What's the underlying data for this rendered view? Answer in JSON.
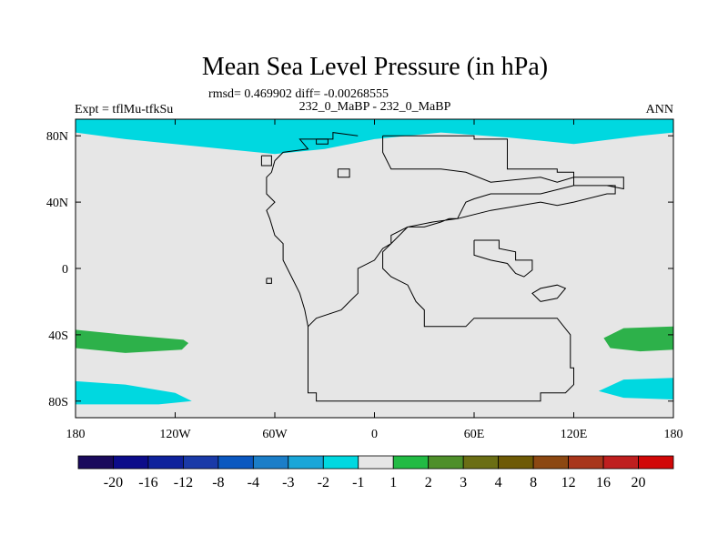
{
  "title": "Mean Sea Level Pressure (in hPa)",
  "stats": "rmsd= 0.469902 diff= -0.00268555",
  "left_label": "Expt = tflMu-tfkSu",
  "center_label": "232_0_MaBP - 232_0_MaBP",
  "right_label": "ANN",
  "colors": {
    "background": "#e6e6e6",
    "coast": "#000000",
    "neg1": "#00d8e0",
    "pos1": "#2db14a"
  },
  "chart_data": {
    "type": "map",
    "projection": "cylindrical-equidistant",
    "lon_range": [
      -180,
      180
    ],
    "lat_range": [
      -90,
      90
    ],
    "x_ticks": [
      {
        "lon": -180,
        "label": "180"
      },
      {
        "lon": -120,
        "label": "120W"
      },
      {
        "lon": -60,
        "label": "60W"
      },
      {
        "lon": 0,
        "label": "0"
      },
      {
        "lon": 60,
        "label": "60E"
      },
      {
        "lon": 120,
        "label": "120E"
      },
      {
        "lon": 180,
        "label": "180"
      }
    ],
    "y_ticks": [
      {
        "lat": 80,
        "label": "80N"
      },
      {
        "lat": 40,
        "label": "40N"
      },
      {
        "lat": 0,
        "label": "0"
      },
      {
        "lat": -40,
        "label": "40S"
      },
      {
        "lat": -80,
        "label": "80S"
      }
    ],
    "regions": [
      {
        "name": "arctic-band",
        "value_class": "-2 to -1",
        "color": "#00d8e0",
        "lonlat": [
          [
            -180,
            82
          ],
          [
            -150,
            78
          ],
          [
            -100,
            73
          ],
          [
            -60,
            69
          ],
          [
            -30,
            72
          ],
          [
            0,
            78
          ],
          [
            40,
            82
          ],
          [
            80,
            79
          ],
          [
            120,
            75
          ],
          [
            160,
            80
          ],
          [
            180,
            82
          ],
          [
            180,
            90
          ],
          [
            -180,
            90
          ]
        ]
      },
      {
        "name": "sw-pacific-high",
        "value_class": "1 to 2",
        "color": "#2db14a",
        "lonlat": [
          [
            -180,
            -37
          ],
          [
            -150,
            -40
          ],
          [
            -115,
            -43
          ],
          [
            -112,
            -45
          ],
          [
            -116,
            -49
          ],
          [
            -150,
            -51
          ],
          [
            -180,
            -48
          ]
        ]
      },
      {
        "name": "se-pacific-high",
        "value_class": "1 to 2",
        "color": "#2db14a",
        "lonlat": [
          [
            180,
            -35
          ],
          [
            150,
            -36
          ],
          [
            138,
            -42
          ],
          [
            142,
            -48
          ],
          [
            160,
            -50
          ],
          [
            180,
            -49
          ]
        ]
      },
      {
        "name": "sw-southern-low",
        "value_class": "-2 to -1",
        "color": "#00d8e0",
        "lonlat": [
          [
            -180,
            -68
          ],
          [
            -150,
            -70
          ],
          [
            -120,
            -75
          ],
          [
            -110,
            -80
          ],
          [
            -130,
            -82
          ],
          [
            -180,
            -82
          ]
        ]
      },
      {
        "name": "se-southern-low",
        "value_class": "-2 to -1",
        "color": "#00d8e0",
        "lonlat": [
          [
            180,
            -66
          ],
          [
            150,
            -67
          ],
          [
            135,
            -74
          ],
          [
            150,
            -78
          ],
          [
            180,
            -79
          ]
        ]
      }
    ],
    "coastlines": [
      {
        "name": "pangaea-outline",
        "lonlat": [
          [
            5,
            80
          ],
          [
            60,
            80
          ],
          [
            60,
            78
          ],
          [
            80,
            78
          ],
          [
            80,
            60
          ],
          [
            110,
            60
          ],
          [
            110,
            58
          ],
          [
            120,
            58
          ],
          [
            120,
            50
          ],
          [
            145,
            50
          ],
          [
            145,
            45
          ],
          [
            140,
            45
          ],
          [
            120,
            40
          ],
          [
            110,
            38
          ],
          [
            100,
            40
          ],
          [
            70,
            35
          ],
          [
            50,
            30
          ],
          [
            35,
            28
          ],
          [
            20,
            25
          ],
          [
            10,
            15
          ],
          [
            5,
            12
          ],
          [
            0,
            5
          ],
          [
            -10,
            0
          ],
          [
            -10,
            -15
          ],
          [
            -15,
            -20
          ],
          [
            -20,
            -25
          ],
          [
            -35,
            -30
          ],
          [
            -40,
            -35
          ],
          [
            -40,
            -60
          ],
          [
            -40,
            -75
          ],
          [
            -35,
            -75
          ],
          [
            -35,
            -80
          ],
          [
            100,
            -80
          ],
          [
            100,
            -75
          ],
          [
            115,
            -75
          ],
          [
            120,
            -70
          ],
          [
            120,
            -60
          ],
          [
            118,
            -60
          ],
          [
            118,
            -40
          ],
          [
            110,
            -30
          ],
          [
            60,
            -30
          ],
          [
            55,
            -35
          ],
          [
            30,
            -35
          ],
          [
            30,
            -25
          ],
          [
            25,
            -20
          ],
          [
            20,
            -10
          ],
          [
            10,
            -5
          ],
          [
            5,
            0
          ],
          [
            5,
            10
          ],
          [
            10,
            15
          ],
          [
            10,
            20
          ],
          [
            20,
            25
          ],
          [
            30,
            25
          ],
          [
            40,
            28
          ],
          [
            45,
            30
          ],
          [
            50,
            30
          ],
          [
            55,
            40
          ],
          [
            60,
            42
          ],
          [
            70,
            45
          ],
          [
            80,
            45
          ],
          [
            100,
            45
          ],
          [
            120,
            50
          ],
          [
            140,
            50
          ],
          [
            150,
            48
          ],
          [
            150,
            55
          ],
          [
            120,
            55
          ],
          [
            110,
            52
          ],
          [
            100,
            55
          ],
          [
            70,
            52
          ],
          [
            55,
            58
          ],
          [
            40,
            60
          ],
          [
            20,
            60
          ],
          [
            10,
            60
          ],
          [
            5,
            70
          ],
          [
            5,
            80
          ]
        ]
      },
      {
        "name": "western-coast",
        "lonlat": [
          [
            -10,
            80
          ],
          [
            -25,
            82
          ],
          [
            -25,
            78
          ],
          [
            -45,
            78
          ],
          [
            -40,
            72
          ],
          [
            -55,
            70
          ],
          [
            -60,
            65
          ],
          [
            -62,
            58
          ],
          [
            -65,
            55
          ],
          [
            -65,
            45
          ],
          [
            -60,
            40
          ],
          [
            -65,
            35
          ],
          [
            -63,
            30
          ],
          [
            -60,
            20
          ],
          [
            -55,
            15
          ],
          [
            -55,
            5
          ],
          [
            -50,
            -5
          ],
          [
            -45,
            -15
          ],
          [
            -42,
            -25
          ],
          [
            -40,
            -35
          ]
        ]
      },
      {
        "name": "inner-gulf",
        "lonlat": [
          [
            60,
            17
          ],
          [
            75,
            17
          ],
          [
            75,
            12
          ],
          [
            85,
            10
          ],
          [
            85,
            5
          ],
          [
            95,
            5
          ],
          [
            95,
            -1
          ],
          [
            90,
            -5
          ],
          [
            85,
            -3
          ],
          [
            80,
            3
          ],
          [
            70,
            5
          ],
          [
            60,
            8
          ],
          [
            60,
            17
          ]
        ]
      },
      {
        "name": "east-inlet",
        "lonlat": [
          [
            100,
            -20
          ],
          [
            110,
            -18
          ],
          [
            115,
            -12
          ],
          [
            110,
            -10
          ],
          [
            100,
            -12
          ],
          [
            95,
            -15
          ],
          [
            100,
            -20
          ]
        ]
      },
      {
        "name": "north-island-1",
        "lonlat": [
          [
            -35,
            78
          ],
          [
            -28,
            78
          ],
          [
            -28,
            75
          ],
          [
            -35,
            75
          ],
          [
            -35,
            78
          ]
        ]
      },
      {
        "name": "north-island-2",
        "lonlat": [
          [
            -68,
            68
          ],
          [
            -62,
            68
          ],
          [
            -62,
            62
          ],
          [
            -68,
            62
          ],
          [
            -68,
            68
          ]
        ]
      },
      {
        "name": "north-island-3",
        "lonlat": [
          [
            -22,
            60
          ],
          [
            -15,
            60
          ],
          [
            -15,
            55
          ],
          [
            -22,
            55
          ],
          [
            -22,
            60
          ]
        ]
      },
      {
        "name": "small-island",
        "lonlat": [
          [
            -65,
            -6
          ],
          [
            -62,
            -6
          ],
          [
            -62,
            -9
          ],
          [
            -65,
            -9
          ],
          [
            -65,
            -6
          ]
        ]
      }
    ],
    "colorbar": {
      "colors": [
        "#1a0a5c",
        "#0c0c8a",
        "#0f229c",
        "#1a3aa8",
        "#0b58c0",
        "#1b7ec8",
        "#1aa6d8",
        "#00d8e0",
        "#e6e6e6",
        "#22bb44",
        "#4e8f2a",
        "#6b6e14",
        "#6e5a06",
        "#8c4812",
        "#a8361b",
        "#bf1f1f",
        "#d10808"
      ],
      "labels": [
        "-20",
        "-16",
        "-12",
        "-8",
        "-4",
        "-3",
        "-2",
        "-1",
        "1",
        "2",
        "3",
        "4",
        "8",
        "12",
        "16",
        "20"
      ]
    }
  }
}
